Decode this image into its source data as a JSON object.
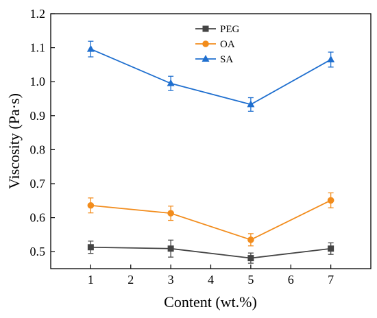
{
  "chart_data": {
    "type": "line",
    "xlabel": "Content (wt.%)",
    "ylabel": "Viscosity (Pa·s)",
    "xlim": [
      0,
      8
    ],
    "ylim": [
      0.45,
      1.2
    ],
    "x_ticks": [
      1,
      2,
      3,
      4,
      5,
      6,
      7
    ],
    "x_tick_labels": [
      "1",
      "2",
      "3",
      "4",
      "5",
      "6",
      "7"
    ],
    "y_ticks": [
      0.5,
      0.6,
      0.7,
      0.8,
      0.9,
      1.0,
      1.1,
      1.2
    ],
    "y_tick_labels": [
      "0.5",
      "0.6",
      "0.7",
      "0.8",
      "0.9",
      "1.0",
      "1.1",
      "1.2"
    ],
    "legend_position": "top-center",
    "x": [
      1,
      3,
      5,
      7
    ],
    "series": [
      {
        "name": "PEG",
        "color": "#444444",
        "marker": "square",
        "values": [
          0.513,
          0.509,
          0.481,
          0.509
        ],
        "errors": [
          0.018,
          0.025,
          0.015,
          0.017
        ]
      },
      {
        "name": "OA",
        "color": "#f28c1c",
        "marker": "circle",
        "values": [
          0.636,
          0.613,
          0.535,
          0.651
        ],
        "errors": [
          0.022,
          0.021,
          0.018,
          0.022
        ]
      },
      {
        "name": "SA",
        "color": "#1f6fcf",
        "marker": "triangle",
        "values": [
          1.096,
          0.995,
          0.933,
          1.065
        ],
        "errors": [
          0.023,
          0.021,
          0.02,
          0.022
        ]
      }
    ]
  }
}
